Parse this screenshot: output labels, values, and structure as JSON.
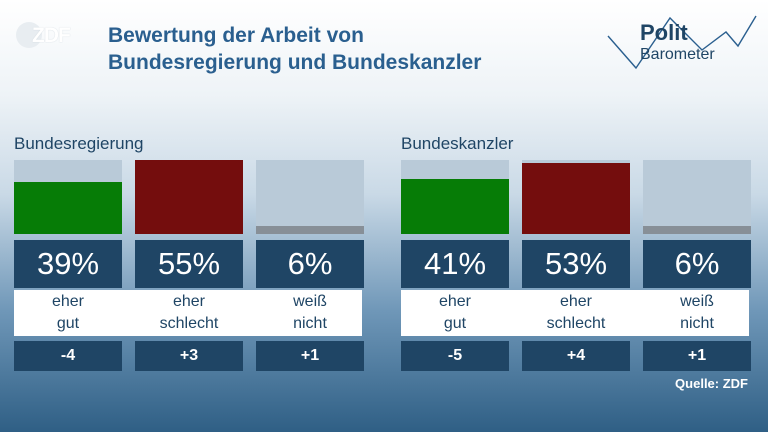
{
  "logo": {
    "text": "ZDF"
  },
  "title": {
    "line1": "Bewertung der Arbeit von",
    "line2": "Bundesregierung und Bundeskanzler"
  },
  "brand": {
    "line1": "Polit",
    "line2": "Barometer"
  },
  "source": "Quelle: ZDF",
  "colors": {
    "eher_gut": "#067c06",
    "eher_schlecht": "#740d0d",
    "weiss_nicht": "#878f97",
    "panel": "#1f4565",
    "bar_bg": "#b9cad8"
  },
  "chart_data": [
    {
      "type": "bar",
      "title": "Bundesregierung",
      "categories": [
        "eher gut",
        "eher schlecht",
        "weiß nicht"
      ],
      "label_lines": [
        [
          "eher",
          "gut"
        ],
        [
          "eher",
          "schlecht"
        ],
        [
          "weiß",
          "nicht"
        ]
      ],
      "values": [
        39,
        55,
        6
      ],
      "value_labels": [
        "39%",
        "55%",
        "6%"
      ],
      "changes": [
        "-4",
        "+3",
        "+1"
      ],
      "ylim": [
        0,
        55
      ]
    },
    {
      "type": "bar",
      "title": "Bundeskanzler",
      "categories": [
        "eher gut",
        "eher schlecht",
        "weiß nicht"
      ],
      "label_lines": [
        [
          "eher",
          "gut"
        ],
        [
          "eher",
          "schlecht"
        ],
        [
          "weiß",
          "nicht"
        ]
      ],
      "values": [
        41,
        53,
        6
      ],
      "value_labels": [
        "41%",
        "53%",
        "6%"
      ],
      "changes": [
        "-5",
        "+4",
        "+1"
      ],
      "ylim": [
        0,
        55
      ]
    }
  ]
}
